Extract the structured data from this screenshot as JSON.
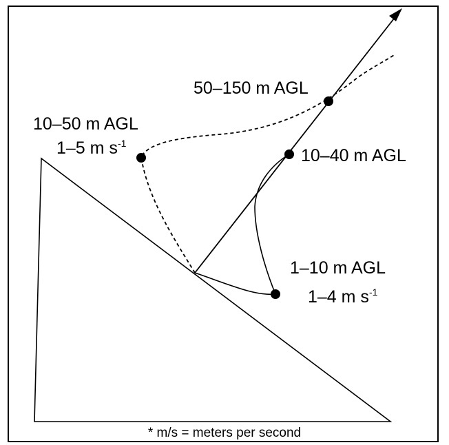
{
  "labels": {
    "top_right": {
      "altitude": "50–150 m AGL"
    },
    "left": {
      "altitude": "10–50 m AGL",
      "speed": "1–5 m s",
      "speed_exp": "-1"
    },
    "right_mid": {
      "altitude": "10–40 m AGL"
    },
    "bottom_right": {
      "altitude": "1–10 m AGL",
      "speed": "1–4 m s",
      "speed_exp": "-1"
    }
  },
  "caption": "* m/s = meters per second"
}
